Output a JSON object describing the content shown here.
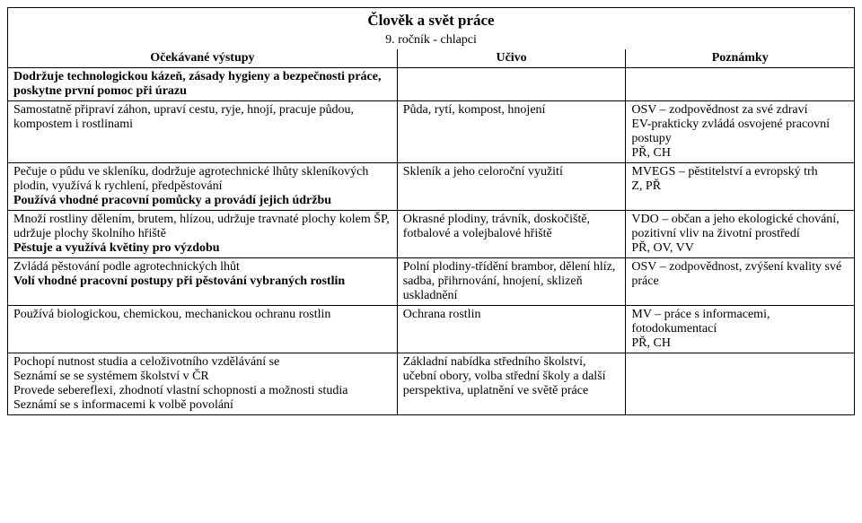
{
  "title": "Člověk a svět práce",
  "subtitle": "9. ročník - chlapci",
  "headers": {
    "c0": "Očekávané výstupy",
    "c1": "Učivo",
    "c2": "Poznámky"
  },
  "rows": [
    {
      "c0_bold": "Dodržuje technologickou kázeň, zásady hygieny a bezpečnosti práce, poskytne první pomoc při úrazu",
      "c1": "",
      "c2": ""
    },
    {
      "c0": "Samostatně připraví záhon, upraví cestu, ryje, hnojí, pracuje půdou, kompostem i rostlinami",
      "c1": "Půda, rytí, kompost, hnojení",
      "c2": "OSV – zodpovědnost za své zdraví\nEV-prakticky zvládá osvojené pracovní postupy\nPŘ, CH"
    },
    {
      "c0_pre": "Pečuje o půdu ve skleníku, dodržuje agrotechnické lhůty skleníkových plodin, využívá k rychlení, předpěstování\n",
      "c0_bold": "Používá vhodné pracovní pomůcky a provádí jejich údržbu",
      "c1": "Skleník a jeho celoroční využití",
      "c2": "MVEGS – pěstitelství a evropský trh\nZ, PŘ"
    },
    {
      "c0_pre": "Množí rostliny dělením, brutem, hlízou, udržuje travnaté plochy kolem ŠP, udržuje plochy školního hřiště\n",
      "c0_bold": "Pěstuje a využívá květiny pro výzdobu",
      "c1": "Okrasné plodiny, trávník, doskočiště, fotbalové a volejbalové hřiště",
      "c2": "VDO – občan a jeho ekologické chování, pozitivní vliv na životní prostředí\nPŘ, OV, VV"
    },
    {
      "c0_pre": "Zvládá pěstování podle agrotechnických lhůt\n",
      "c0_bold": "Volí vhodné pracovní postupy při pěstování vybraných rostlin",
      "c1": "Polní plodiny-třídění brambor, dělení hlíz, sadba, přihrnování, hnojení, sklizeň uskladnění",
      "c2": "OSV – zodpovědnost, zvýšení kvality své práce"
    },
    {
      "c0": "Používá biologickou, chemickou, mechanickou ochranu rostlin",
      "c1": "Ochrana rostlin",
      "c2": "MV – práce s informacemi, fotodokumentací\nPŘ, CH"
    },
    {
      "c0": "Pochopí nutnost studia a celoživotního vzdělávání se\nSeznámí se se systémem školství v ČR\nProvede sebereflexi, zhodnotí vlastní schopnosti a možnosti studia\nSeznámí se s informacemi k volbě povolání",
      "c1": "Základní nabídka středního školství, učební obory, volba střední školy a další perspektiva, uplatnění ve světě práce",
      "c2": ""
    }
  ]
}
